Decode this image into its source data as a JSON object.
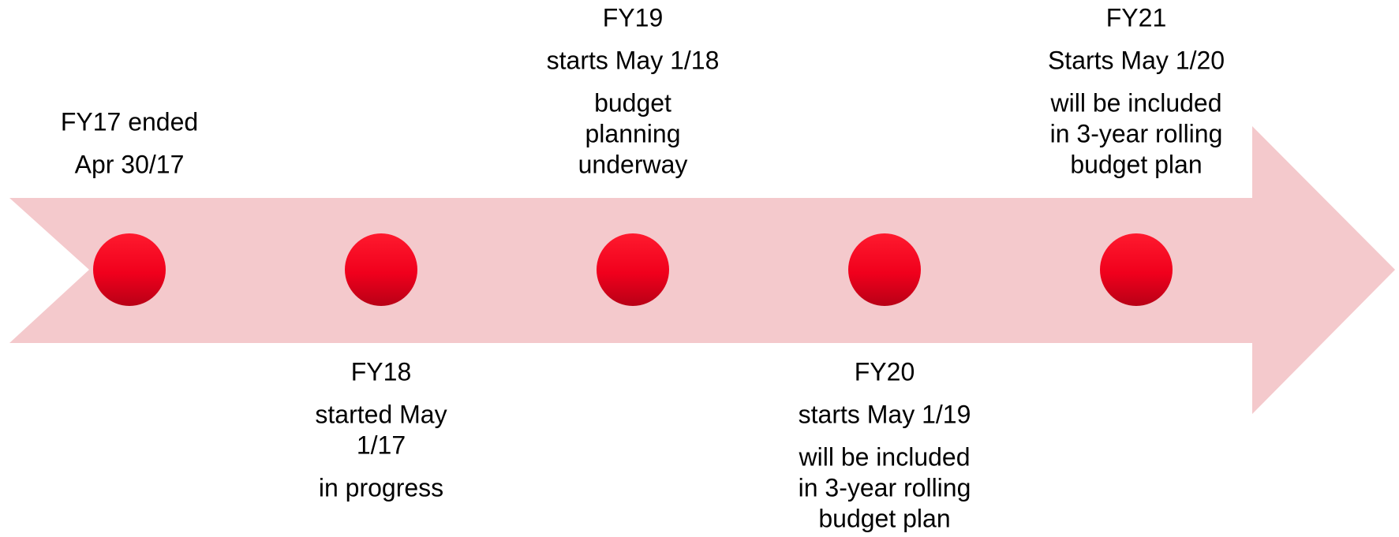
{
  "milestones": [
    {
      "paragraphs": [
        [
          "FY17  ended"
        ],
        [
          "Apr 30/17"
        ]
      ]
    },
    {
      "paragraphs": [
        [
          "FY18"
        ],
        [
          "started May",
          "1/17"
        ],
        [
          "in progress"
        ]
      ]
    },
    {
      "paragraphs": [
        [
          "FY19"
        ],
        [
          "starts May 1/18"
        ],
        [
          "budget",
          "planning",
          "underway"
        ]
      ]
    },
    {
      "paragraphs": [
        [
          "FY20"
        ],
        [
          "starts May 1/19"
        ],
        [
          "will be included",
          "in 3-year rolling",
          "budget plan"
        ]
      ]
    },
    {
      "paragraphs": [
        [
          "FY21"
        ],
        [
          "Starts May 1/20"
        ],
        [
          "will be included",
          "in 3-year rolling",
          "budget plan"
        ]
      ]
    }
  ]
}
